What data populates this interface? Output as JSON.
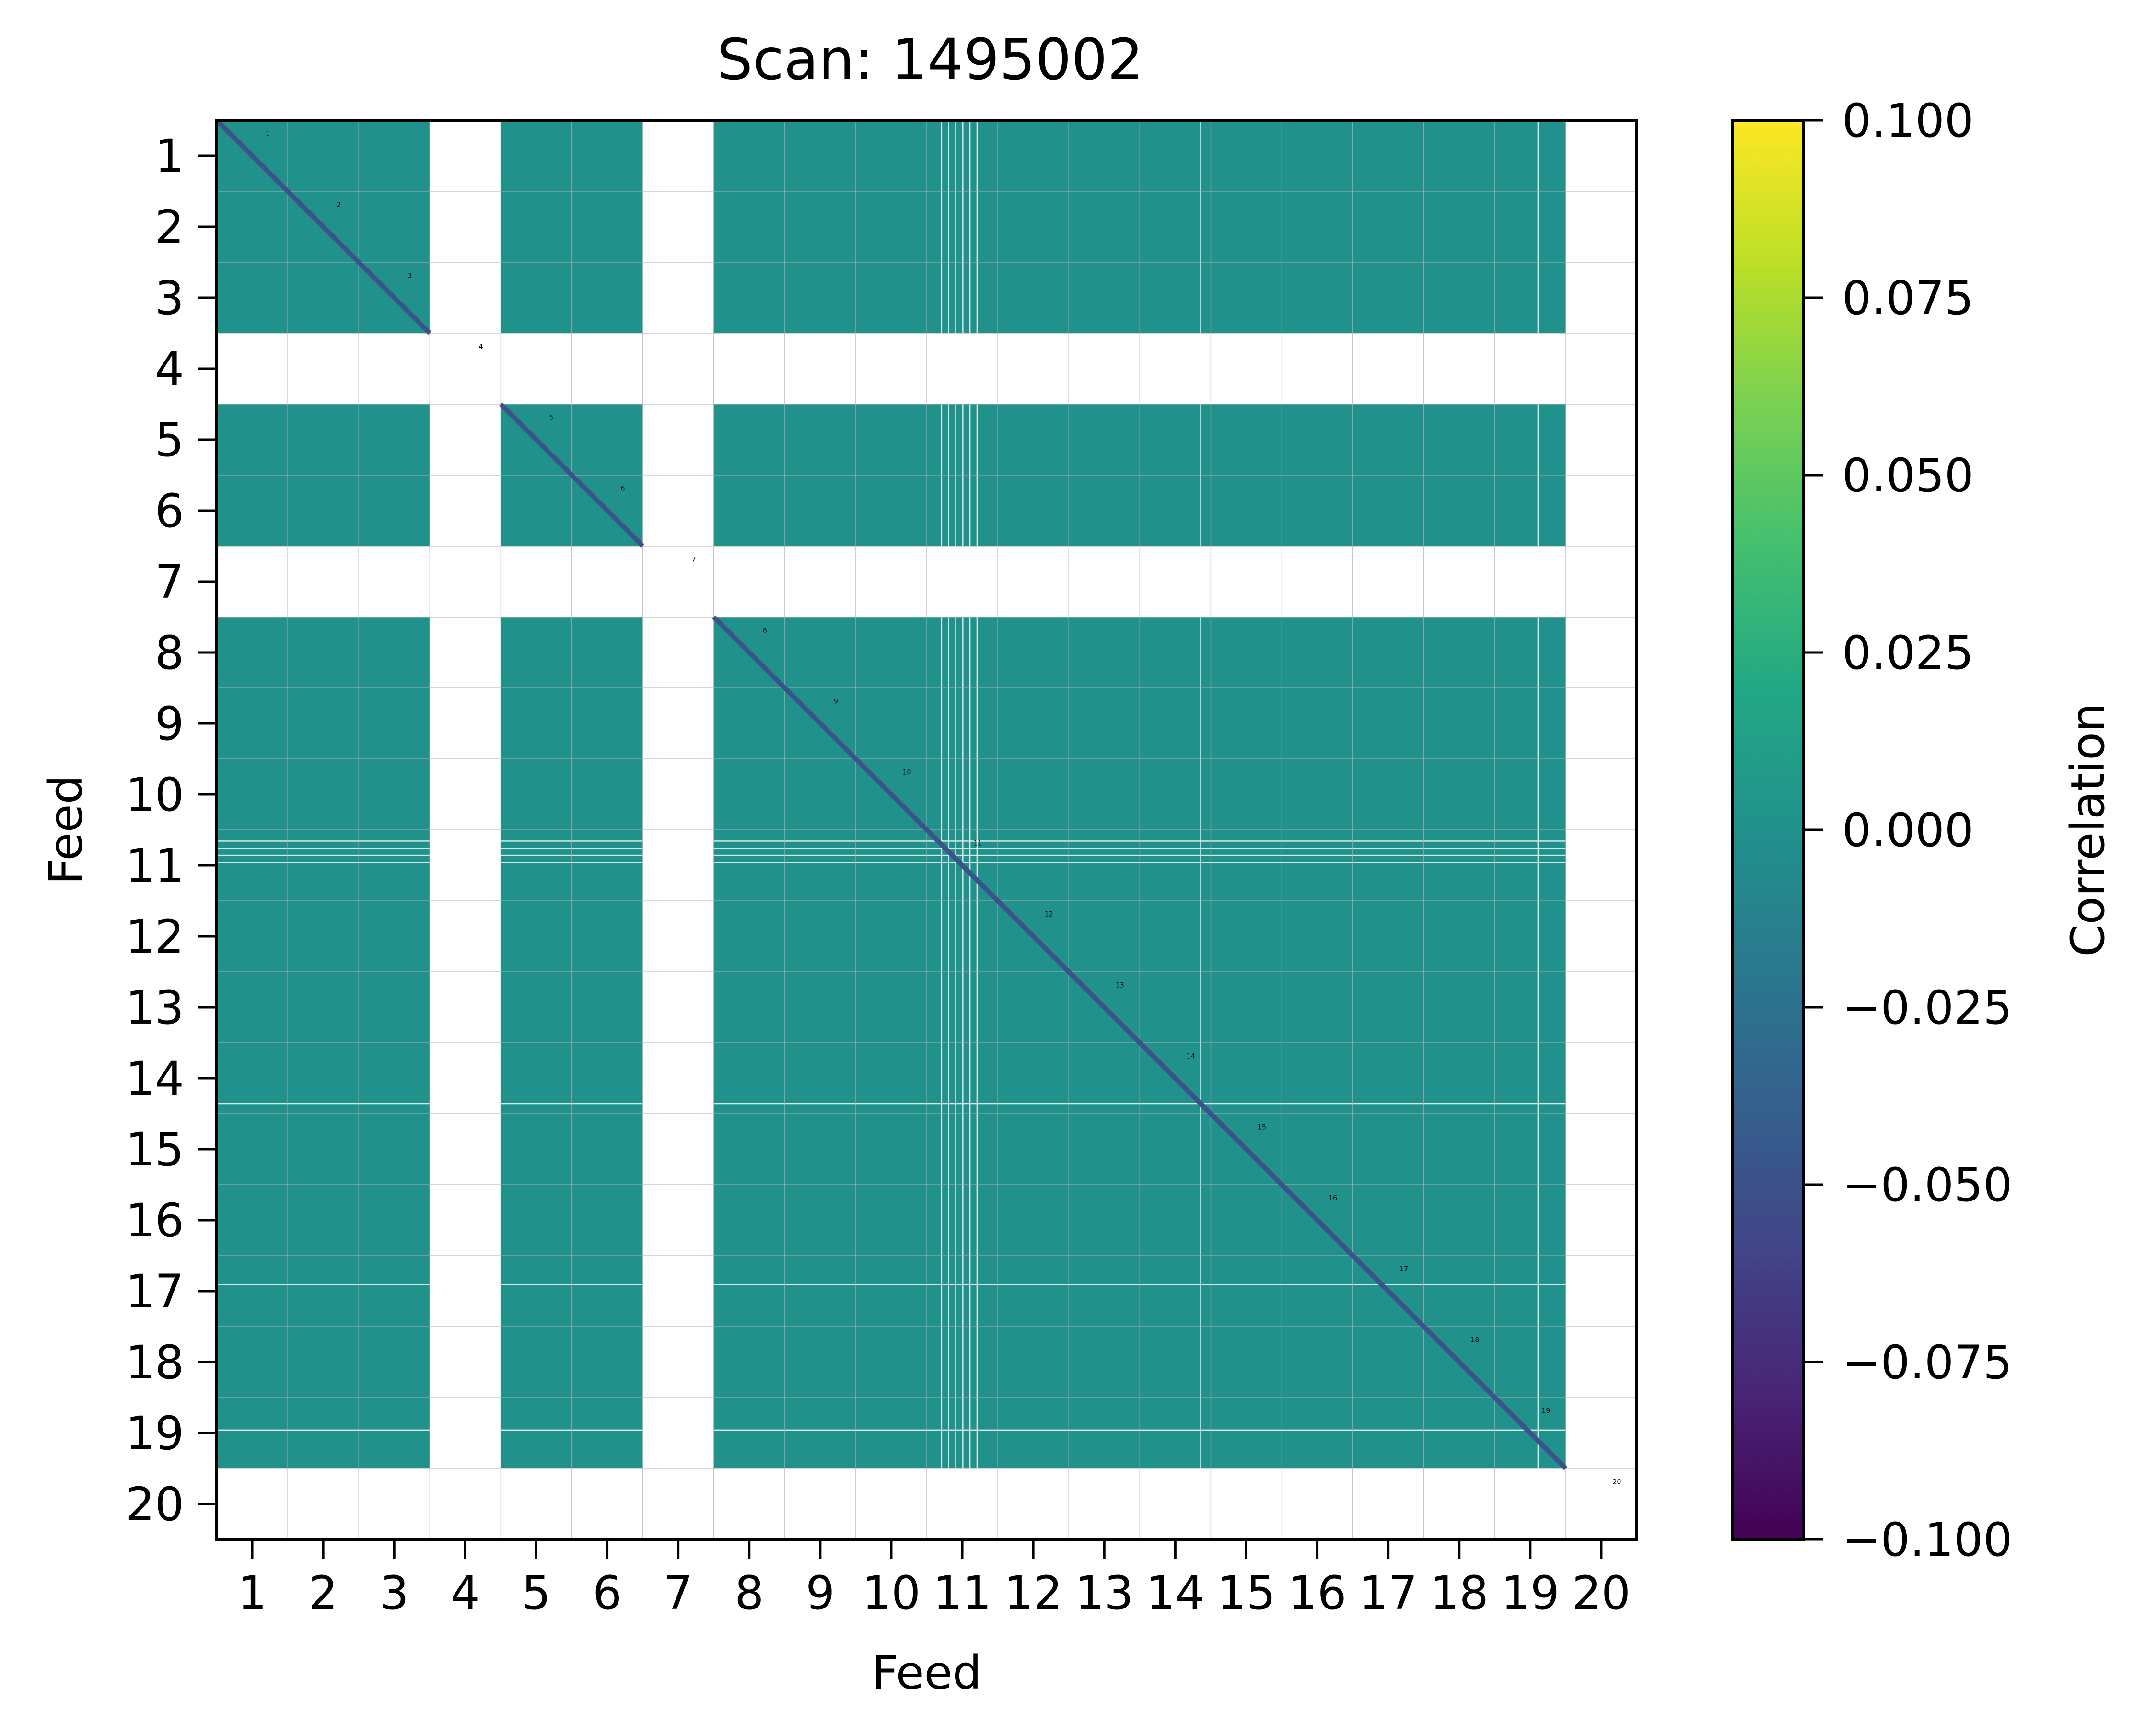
{
  "chart_data": {
    "type": "heatmap",
    "title": "Scan: 1495002",
    "xlabel": "Feed",
    "ylabel": "Feed",
    "x_ticks": [
      "1",
      "2",
      "3",
      "4",
      "5",
      "6",
      "7",
      "8",
      "9",
      "10",
      "11",
      "12",
      "13",
      "14",
      "15",
      "16",
      "17",
      "18",
      "19",
      "20"
    ],
    "y_ticks": [
      "1",
      "2",
      "3",
      "4",
      "5",
      "6",
      "7",
      "8",
      "9",
      "10",
      "11",
      "12",
      "13",
      "14",
      "15",
      "16",
      "17",
      "18",
      "19",
      "20"
    ],
    "feeds": [
      1,
      2,
      3,
      4,
      5,
      6,
      7,
      8,
      9,
      10,
      11,
      12,
      13,
      14,
      15,
      16,
      17,
      18,
      19,
      20
    ],
    "masked_feeds": [
      4,
      7,
      20
    ],
    "diagonal_labels": [
      "1",
      "2",
      "3",
      "4",
      "5",
      "6",
      "7",
      "8",
      "9",
      "10",
      "11",
      "12",
      "13",
      "14",
      "15",
      "16",
      "17",
      "18",
      "19",
      "20"
    ],
    "off_diagonal_correlation": 0.0,
    "diagonal_correlation": -0.03,
    "colorbar": {
      "label": "Correlation",
      "colormap": "viridis",
      "range": [
        -0.1,
        0.1
      ],
      "ticks": [
        "0.100",
        "0.075",
        "0.050",
        "0.025",
        "0.000",
        "−0.025",
        "−0.050",
        "−0.075",
        "−0.100"
      ],
      "tick_values": [
        0.1,
        0.075,
        0.05,
        0.025,
        0.0,
        -0.025,
        -0.05,
        -0.075,
        -0.1
      ]
    },
    "colors": {
      "cell": "#21918c",
      "masked": "#ffffff",
      "diagonal": "#3b528b",
      "grid": "#b0b0b0"
    },
    "grid": true
  }
}
